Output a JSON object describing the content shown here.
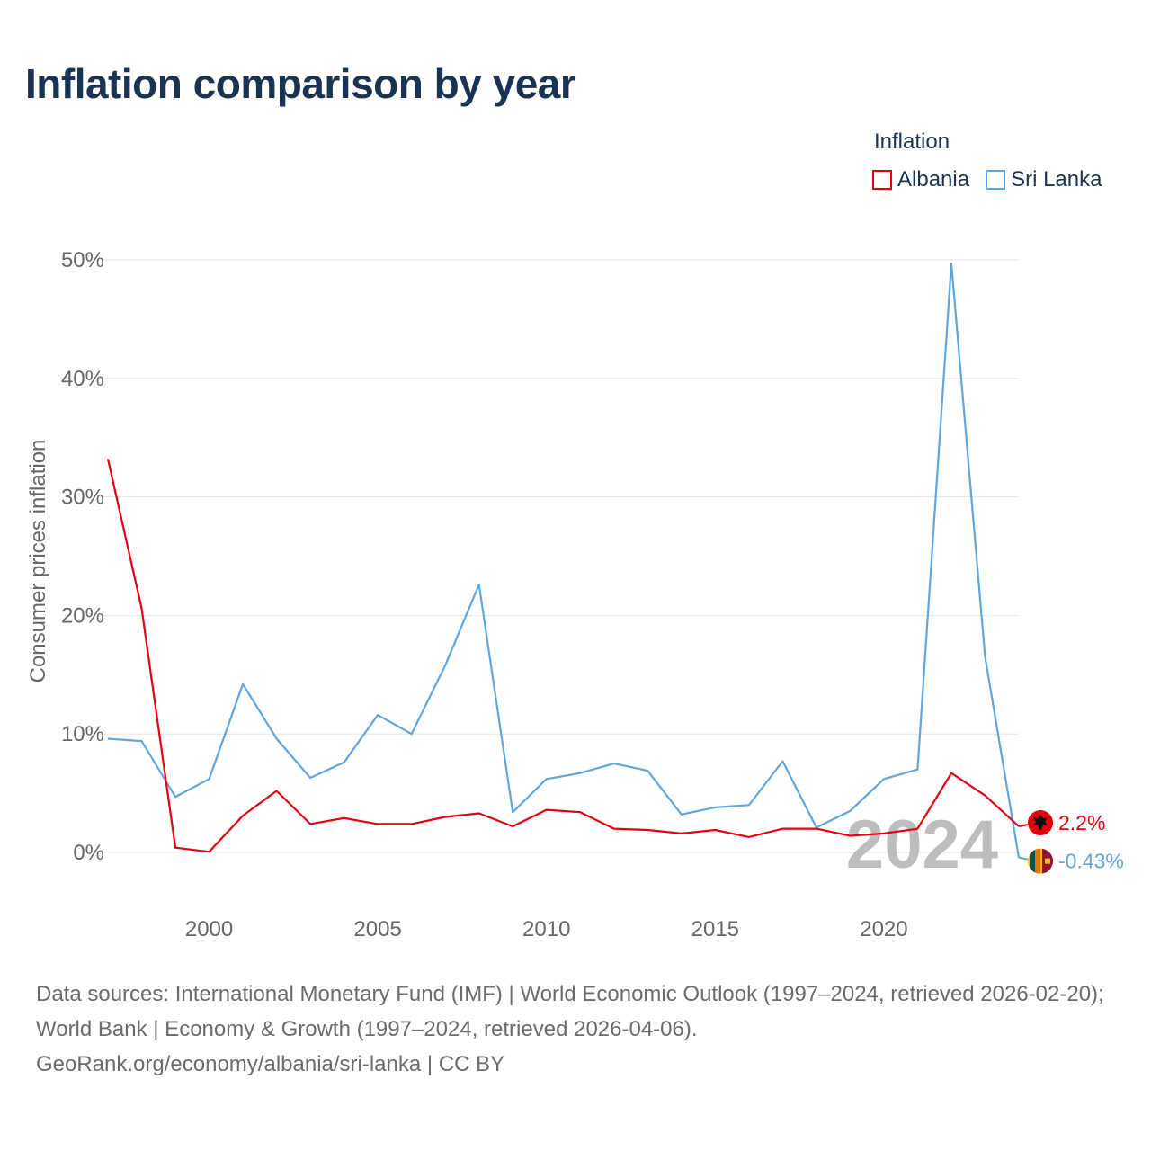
{
  "title": "Inflation comparison by year",
  "legend": {
    "title": "Inflation",
    "items": [
      {
        "label": "Albania",
        "color": "#e3000f"
      },
      {
        "label": "Sri Lanka",
        "color": "#5ea6e0"
      }
    ]
  },
  "chart_data": {
    "type": "line",
    "title": "Inflation comparison by year",
    "xlabel": "",
    "ylabel": "Consumer prices inflation",
    "xlim": [
      1997,
      2024
    ],
    "ylim": [
      -5,
      55
    ],
    "x_ticks": [
      2000,
      2005,
      2010,
      2015,
      2020
    ],
    "y_ticks": [
      0,
      10,
      20,
      30,
      40,
      50
    ],
    "y_tick_labels": [
      "0%",
      "10%",
      "20%",
      "30%",
      "40%",
      "50%"
    ],
    "grid": true,
    "legend_position": "top-right",
    "x": [
      1997,
      1998,
      1999,
      2000,
      2001,
      2002,
      2003,
      2004,
      2005,
      2006,
      2007,
      2008,
      2009,
      2010,
      2011,
      2012,
      2013,
      2014,
      2015,
      2016,
      2017,
      2018,
      2019,
      2020,
      2021,
      2022,
      2023,
      2024
    ],
    "series": [
      {
        "name": "Albania",
        "color": "#e3000f",
        "values": [
          33.2,
          20.6,
          0.4,
          0.05,
          3.1,
          5.2,
          2.4,
          2.9,
          2.4,
          2.4,
          3.0,
          3.3,
          2.2,
          3.6,
          3.4,
          2.0,
          1.9,
          1.6,
          1.9,
          1.3,
          2.0,
          2.0,
          1.4,
          1.6,
          2.0,
          6.7,
          4.8,
          2.2
        ]
      },
      {
        "name": "Sri Lanka",
        "color": "#5ea6e0",
        "values": [
          9.6,
          9.4,
          4.7,
          6.2,
          14.2,
          9.6,
          6.3,
          7.6,
          11.6,
          10.0,
          15.8,
          22.6,
          3.4,
          6.2,
          6.7,
          7.5,
          6.9,
          3.2,
          3.8,
          4.0,
          7.7,
          2.1,
          3.5,
          6.2,
          7.0,
          49.7,
          16.5,
          -0.43
        ]
      }
    ],
    "end_labels": [
      {
        "series": "Albania",
        "year": 2024,
        "text": "2.2%"
      },
      {
        "series": "Sri Lanka",
        "year": 2024,
        "text": "-0.43%"
      }
    ],
    "year_watermark": "2024"
  },
  "footer": {
    "sources": "Data sources: International Monetary Fund (IMF) | World Economic Outlook (1997–2024, retrieved 2026-02-20); World Bank | Economy & Growth (1997–2024, retrieved 2026-04-06).",
    "credit": "GeoRank.org/economy/albania/sri-lanka | CC BY"
  }
}
